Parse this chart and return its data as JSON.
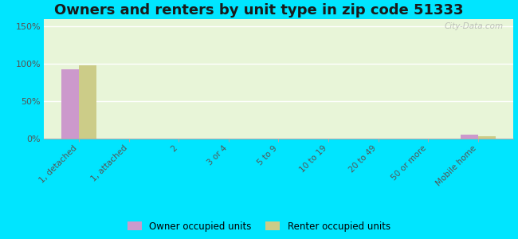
{
  "title": "Owners and renters by unit type in zip code 51333",
  "categories": [
    "1, detached",
    "1, attached",
    "2",
    "3 or 4",
    "5 to 9",
    "10 to 19",
    "20 to 49",
    "50 or more",
    "Mobile home"
  ],
  "owner_values": [
    93,
    0,
    0,
    0,
    0,
    0,
    0,
    0,
    5
  ],
  "renter_values": [
    98,
    0,
    0,
    0,
    0,
    0,
    0,
    0,
    3
  ],
  "owner_color": "#cc99cc",
  "renter_color": "#cccc88",
  "background_outer": "#00e5ff",
  "background_plot": "#e8f5d8",
  "yticks": [
    0,
    50,
    100,
    150
  ],
  "ylim": [
    0,
    160
  ],
  "bar_width": 0.35,
  "title_fontsize": 13,
  "watermark": "City-Data.com"
}
